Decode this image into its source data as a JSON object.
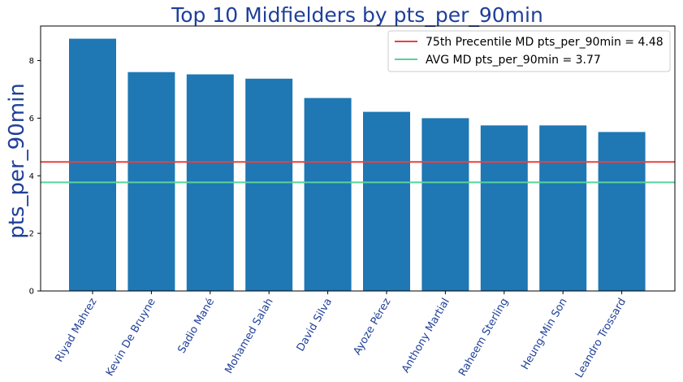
{
  "chart_data": {
    "type": "bar",
    "title": "Top 10 Midfielders by pts_per_90min",
    "xlabel": "",
    "ylabel": "pts_per_90min",
    "ylim": [
      0,
      9.2
    ],
    "yticks": [
      0,
      2,
      4,
      6,
      8
    ],
    "categories": [
      "Riyad Mahrez",
      "Kevin De Bruyne",
      "Sadio Mané",
      "Mohamed Salah",
      "David Silva",
      "Ayoze Pérez",
      "Anthony Martial",
      "Raheem Sterling",
      "Heung-Min Son",
      "Leandro Trossard"
    ],
    "values": [
      8.76,
      7.6,
      7.52,
      7.37,
      6.7,
      6.22,
      6.0,
      5.75,
      5.75,
      5.52
    ],
    "bar_color": "#1f77b4",
    "reference_lines": [
      {
        "label": "75th Precentile MD pts_per_90min = 4.48",
        "value": 4.48,
        "color": "#e8413c"
      },
      {
        "label": "AVG MD pts_per_90min = 3.77",
        "value": 3.77,
        "color": "#57d39a"
      }
    ],
    "legend_position": "top-right",
    "grid": false
  }
}
